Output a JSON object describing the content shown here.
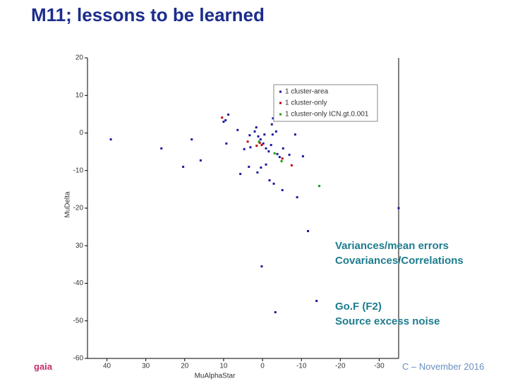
{
  "slide": {
    "title": "M11; lessons to be learned",
    "notes": [
      "Variances/mean errors",
      "Covariances/Correlations",
      "Go.F (F2)",
      "Source excess noise"
    ],
    "logo": "gaia",
    "footer": "C – November 2016"
  },
  "chart_data": {
    "type": "scatter",
    "x_label": "MuAlphaStar",
    "y_label": "MuDelta",
    "xlim": [
      45,
      -35
    ],
    "ylim": [
      -60,
      20
    ],
    "xticks": [
      40,
      30,
      20,
      10,
      0,
      -10,
      -20,
      -30
    ],
    "yticks": [
      20,
      10,
      0,
      -10,
      -20,
      {
        "value": -30,
        "label": "30"
      },
      -40,
      -50,
      -60
    ],
    "legend": "upper right",
    "series": [
      {
        "name": "1 cluster-area",
        "color": "#1a1aa0",
        "x": [
          39,
          26,
          18.2,
          20.4,
          15.9,
          9.3,
          10,
          9.5,
          6.4,
          3.3,
          2,
          1.6,
          1.1,
          0.5,
          -0.2,
          -0.5,
          -0.9,
          -1.6,
          -2.6,
          -2.4,
          -2.7,
          -3.1,
          -3.5,
          -2.2,
          -3.8,
          -4.4,
          -5.3,
          3.1,
          4.7,
          5.7,
          3.5,
          1.3,
          0.4,
          -1.8,
          -2.9,
          -5.1,
          -0.9,
          -8.4,
          -10.4,
          -6.9,
          -8.9,
          -35,
          -11.7,
          -13.9,
          0.2,
          -3.3,
          8.8
        ],
        "values": [
          -1.7,
          -4.1,
          -1.7,
          -9,
          -7.3,
          -2.8,
          3,
          3.4,
          0.8,
          -0.6,
          0.4,
          1.5,
          -0.9,
          -1.7,
          -2.8,
          -0.4,
          -4.1,
          -4.9,
          -0.4,
          2.3,
          3.9,
          7.5,
          0.4,
          -3.2,
          -5.6,
          -6.4,
          -4.1,
          -3.8,
          -4.3,
          -10.9,
          -9,
          -10.5,
          -9.2,
          -12.6,
          -13.5,
          -15.2,
          -8.4,
          -0.4,
          -6.2,
          -5.8,
          -17.1,
          -20,
          -26.1,
          -44.7,
          -35.5,
          -47.7,
          4.9
        ]
      },
      {
        "name": "1 cluster-only",
        "color": "#c00000",
        "x": [
          10.4,
          0.7,
          0.2,
          1.5,
          -5.1,
          -7.5,
          3.8
        ],
        "values": [
          4.1,
          -2.6,
          -3.2,
          -3.4,
          -6.8,
          -8.6,
          -2.3
        ]
      },
      {
        "name": "1 cluster-only ICN.gt.0.001",
        "color": "#1a9a1a",
        "x": [
          -14.6,
          -3.1,
          -4.9,
          0.9
        ],
        "values": [
          -14.1,
          -5.4,
          -7.5,
          -2.3
        ]
      }
    ]
  }
}
